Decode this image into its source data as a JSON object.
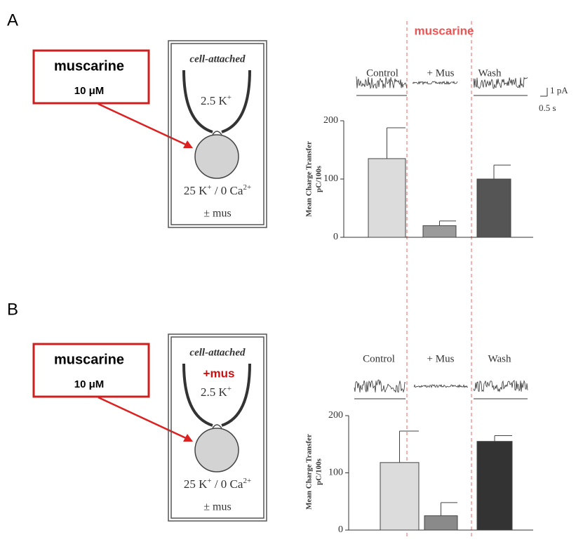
{
  "muscarine_marker": "muscarine",
  "scale_bar": {
    "current": "1 pA",
    "time": "0.5 s"
  },
  "panels": [
    {
      "label": "A",
      "stimulus": {
        "name": "muscarine",
        "dose": "10 μM"
      },
      "diagram": {
        "title": "cell-attached",
        "pipette": [
          "2.5 K",
          "+"
        ],
        "bath": [
          "25 K",
          "+",
          " / 0 Ca",
          "2+"
        ],
        "drug": "± mus"
      }
    },
    {
      "label": "B",
      "stimulus": {
        "name": "muscarine",
        "dose": "10 μM"
      },
      "diagram": {
        "title": "cell-attached",
        "pipette_drug": "+mus",
        "pipette": [
          "2.5 K",
          "+"
        ],
        "bath": [
          "25 K",
          "+",
          " / 0 Ca",
          "2+"
        ],
        "drug": "± mus"
      }
    }
  ],
  "chart_data": [
    {
      "type": "bar",
      "categories": [
        "Control",
        "+ Mus",
        "Wash"
      ],
      "values": [
        135,
        20,
        100
      ],
      "errors": [
        53,
        8,
        24
      ],
      "colors": [
        "#dcdcdc",
        "#9a9a9a",
        "#555555"
      ],
      "ylabel": [
        "Mean Charge Transfer",
        "pC/100s"
      ],
      "ylim": [
        0,
        200
      ],
      "yticks": [
        0,
        100,
        200
      ]
    },
    {
      "type": "bar",
      "categories": [
        "Control",
        "+ Mus",
        "Wash"
      ],
      "values": [
        118,
        25,
        155
      ],
      "errors": [
        55,
        23,
        10
      ],
      "colors": [
        "#dcdcdc",
        "#8a8a8a",
        "#333333"
      ],
      "ylabel": [
        "Mean Charge Transfer",
        "pC/100s"
      ],
      "ylim": [
        0,
        200
      ],
      "yticks": [
        0,
        100,
        200
      ]
    }
  ]
}
